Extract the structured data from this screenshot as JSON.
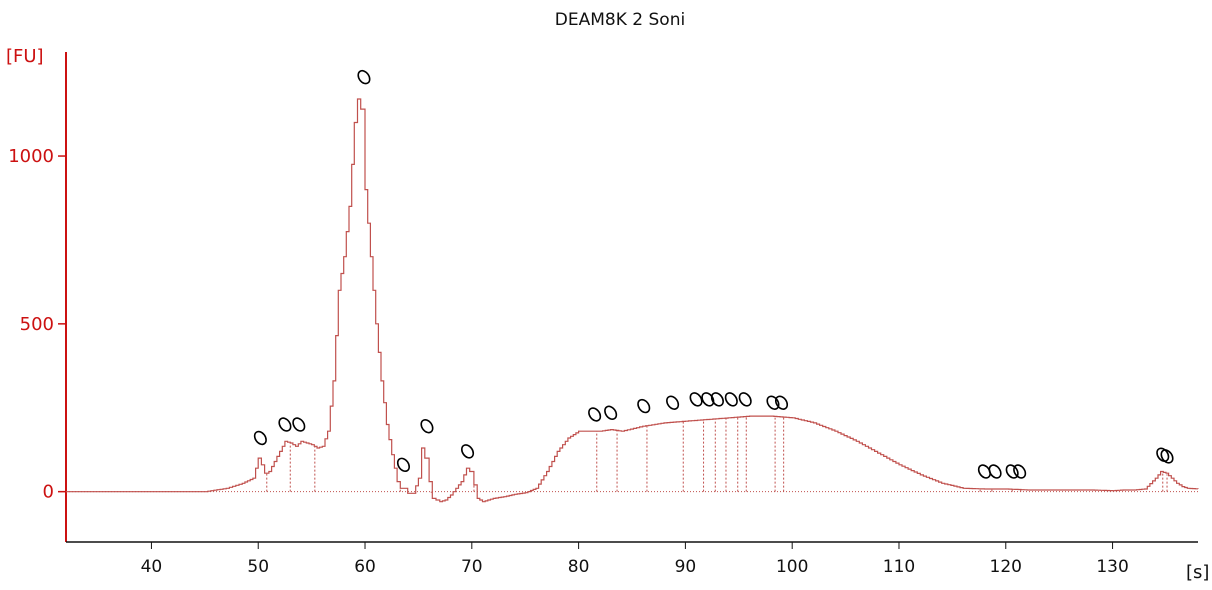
{
  "chart_data": {
    "type": "line",
    "title": "DEAM8K 2 Soni",
    "ylabel": "[FU]",
    "xlabel": "[s]",
    "xlim": [
      32,
      138
    ],
    "ylim": [
      -150,
      1310
    ],
    "x_ticks": [
      40,
      50,
      60,
      70,
      80,
      90,
      100,
      110,
      120,
      130
    ],
    "y_ticks": [
      0,
      500,
      1000
    ],
    "grid": false,
    "colors": {
      "axis": "#cc1111",
      "trace": "#c0504d",
      "marker": "#000000"
    },
    "series": [
      {
        "x": [
          32,
          45,
          47,
          48.5,
          49.5,
          50,
          50.3,
          50.6,
          51,
          52,
          52.5,
          53,
          53.5,
          54,
          54.5,
          55,
          55.5,
          56,
          56.5,
          57,
          57.5,
          58,
          58.5,
          59,
          59.3,
          59.6,
          60,
          60.5,
          61,
          61.5,
          62,
          62.5,
          63,
          63.3,
          63.6,
          64,
          64.5,
          65,
          65.3,
          65.6,
          66,
          66.3,
          67,
          67.5,
          68,
          68.5,
          69,
          69.5,
          69.8,
          70.2,
          70.5,
          71,
          72,
          73,
          74,
          75,
          76,
          77,
          78,
          79,
          80,
          81,
          82,
          83,
          84,
          86,
          88,
          90,
          92,
          94,
          96,
          98,
          100,
          102,
          104,
          106,
          108,
          110,
          112,
          114,
          116,
          118,
          120,
          122,
          124,
          126,
          128,
          130,
          131,
          132,
          133,
          134,
          134.5,
          135,
          135.5,
          136,
          136.5,
          137,
          138
        ],
        "y": [
          0,
          0,
          10,
          25,
          40,
          100,
          80,
          55,
          60,
          120,
          150,
          145,
          135,
          150,
          145,
          140,
          130,
          135,
          180,
          330,
          600,
          700,
          850,
          1100,
          1170,
          1140,
          900,
          700,
          500,
          330,
          200,
          110,
          30,
          10,
          10,
          -5,
          -5,
          40,
          130,
          100,
          30,
          -20,
          -30,
          -25,
          -10,
          10,
          30,
          70,
          60,
          20,
          -20,
          -30,
          -20,
          -15,
          -8,
          -3,
          10,
          60,
          120,
          160,
          180,
          180,
          180,
          185,
          180,
          195,
          205,
          210,
          215,
          220,
          225,
          225,
          220,
          205,
          180,
          150,
          115,
          80,
          50,
          25,
          10,
          8,
          8,
          5,
          5,
          5,
          5,
          3,
          5,
          5,
          8,
          40,
          60,
          55,
          40,
          25,
          15,
          10,
          8
        ]
      }
    ],
    "peak_x": [
      50.8,
      53,
      55.3,
      63.3,
      66.2,
      70.2,
      81.7,
      83.6,
      86.4,
      89.8,
      91.7,
      92.8,
      93.8,
      94.9,
      95.7,
      98.4,
      99.2,
      117.6,
      118.7,
      120.6,
      121.4,
      134.7,
      135.1
    ],
    "peak_marker_x": [
      50.2,
      52.5,
      53.8,
      59.9,
      63.6,
      65.8,
      69.6,
      81.5,
      83,
      86.1,
      88.8,
      91,
      92.1,
      93,
      94.3,
      95.6,
      98.2,
      99,
      118,
      119,
      120.6,
      121.3,
      134.7,
      135.1
    ],
    "peak_marker_y": [
      160,
      200,
      200,
      1235,
      80,
      195,
      120,
      230,
      235,
      255,
      265,
      275,
      275,
      275,
      275,
      275,
      265,
      265,
      60,
      60,
      60,
      60,
      110,
      105
    ],
    "peak_marker_symbol": "0"
  }
}
